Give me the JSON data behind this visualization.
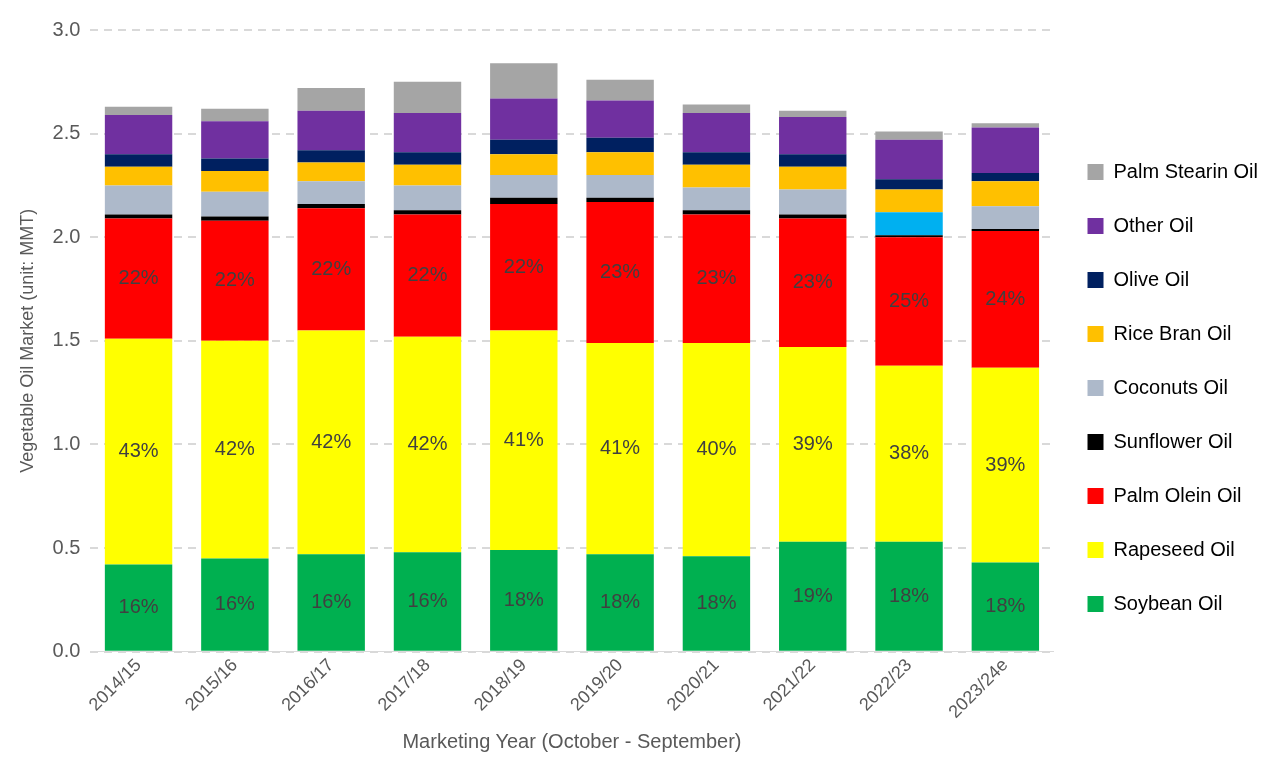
{
  "chart_data": {
    "type": "bar",
    "stacked": true,
    "xlabel": "Marketing Year (October - September)",
    "ylabel": "Vegetable Oil Market (unit: MMT)",
    "categories": [
      "2014/15",
      "2015/16",
      "2016/17",
      "2017/18",
      "2018/19",
      "2019/20",
      "2020/21",
      "2021/22",
      "2022/23",
      "2023/24e"
    ],
    "ylim": [
      0,
      3
    ],
    "yticks": [
      {
        "value": 0,
        "label": "0.0"
      },
      0.5,
      {
        "value": 1,
        "label": "1.0"
      },
      1.5,
      {
        "value": 2,
        "label": "2.0"
      },
      2.5,
      {
        "value": 3,
        "label": "3.0"
      }
    ],
    "grid": "y",
    "legend": "right",
    "series": [
      {
        "name": "Soybean Oil",
        "color": "#00b050",
        "values": [
          0.42,
          0.45,
          0.47,
          0.48,
          0.49,
          0.47,
          0.46,
          0.53,
          0.53,
          0.43
        ]
      },
      {
        "name": "Rapeseed Oil",
        "color": "#ffff00",
        "values": [
          1.09,
          1.05,
          1.08,
          1.04,
          1.06,
          1.02,
          1.03,
          0.94,
          0.85,
          0.94
        ]
      },
      {
        "name": "Palm Olein Oil",
        "color": "#ff0000",
        "values": [
          0.58,
          0.58,
          0.59,
          0.59,
          0.61,
          0.68,
          0.62,
          0.62,
          0.62,
          0.66
        ]
      },
      {
        "name": "Sunflower Oil",
        "color": "#000000",
        "values": [
          0.02,
          0.02,
          0.02,
          0.02,
          0.03,
          0.02,
          0.02,
          0.02,
          0.01,
          0.01
        ]
      },
      {
        "name": "Coconuts Oil",
        "color": "#adb9ca",
        "colors": [
          "#adb9ca",
          "#adb9ca",
          "#adb9ca",
          "#adb9ca",
          "#adb9ca",
          "#adb9ca",
          "#adb9ca",
          "#adb9ca",
          "#00b0f0",
          "#adb9ca"
        ],
        "values": [
          0.14,
          0.12,
          0.11,
          0.12,
          0.11,
          0.11,
          0.11,
          0.12,
          0.11,
          0.11
        ]
      },
      {
        "name": "Rice Bran Oil",
        "color": "#ffc000",
        "values": [
          0.09,
          0.1,
          0.09,
          0.1,
          0.1,
          0.11,
          0.11,
          0.11,
          0.11,
          0.12
        ]
      },
      {
        "name": "Olive Oil",
        "color": "#002060",
        "values": [
          0.06,
          0.06,
          0.06,
          0.06,
          0.07,
          0.07,
          0.06,
          0.06,
          0.05,
          0.04
        ]
      },
      {
        "name": "Other Oil",
        "color": "#7030a0",
        "values": [
          0.19,
          0.18,
          0.19,
          0.19,
          0.2,
          0.18,
          0.19,
          0.18,
          0.19,
          0.22
        ]
      },
      {
        "name": "Palm Stearin Oil",
        "color": "#a5a5a5",
        "values": [
          0.04,
          0.06,
          0.11,
          0.15,
          0.17,
          0.1,
          0.04,
          0.03,
          0.04,
          0.02
        ]
      }
    ],
    "annotations": [
      "16%",
      "16%",
      "16%",
      "16%",
      "18%",
      "18%",
      "18%",
      "19%",
      "18%",
      "18%",
      "43%",
      "42%",
      "42%",
      "42%",
      "41%",
      "41%",
      "40%",
      "39%",
      "38%",
      "39%",
      "22%",
      "22%",
      "22%",
      "22%",
      "22%",
      "23%",
      "23%",
      "23%",
      "25%",
      "24%"
    ]
  }
}
